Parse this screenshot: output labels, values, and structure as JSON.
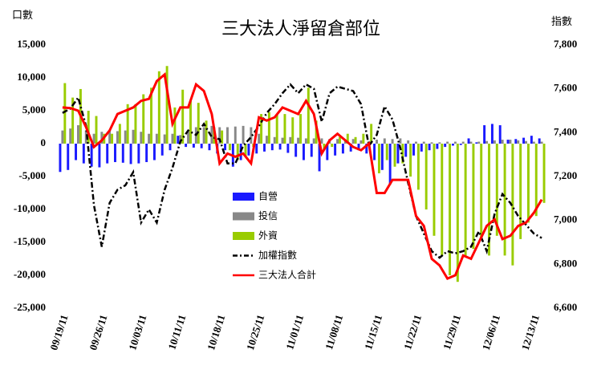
{
  "chart_data": {
    "type": "bar",
    "title": "三大法人淨留倉部位",
    "ylabel": "口數",
    "y2label": "指數",
    "categories": [
      "09/19/11",
      null,
      null,
      null,
      null,
      "09/26/11",
      null,
      null,
      null,
      null,
      "10/03/11",
      null,
      null,
      null,
      null,
      "10/11/11",
      null,
      null,
      null,
      null,
      "10/18/11",
      null,
      null,
      null,
      null,
      "10/25/11",
      null,
      null,
      null,
      null,
      "11/01/11",
      null,
      null,
      null,
      null,
      "11/08/11",
      null,
      null,
      null,
      null,
      "11/15/11",
      null,
      null,
      null,
      null,
      "11/22/11",
      null,
      null,
      null,
      null,
      "11/29/11",
      null,
      null,
      null,
      null,
      "12/06/11",
      null,
      null,
      null,
      null,
      "12/13/11",
      null
    ],
    "ylim": [
      -25000,
      15000
    ],
    "yticks": [
      {
        "value": -25000,
        "label": "-25,000"
      },
      {
        "value": -20000,
        "label": "-20,000"
      },
      {
        "value": -15000,
        "label": "-15,000"
      },
      {
        "value": -10000,
        "label": "-10,000"
      },
      {
        "value": -5000,
        "label": "-5,000"
      },
      0,
      {
        "value": 5000,
        "label": "5,000"
      },
      {
        "value": 10000,
        "label": "10,000"
      },
      {
        "value": 15000,
        "label": "15,000"
      }
    ],
    "y2lim": [
      6600,
      7800
    ],
    "y2ticks": [
      {
        "value": 6600,
        "label": "6,600"
      },
      {
        "value": 6800,
        "label": "6,800"
      },
      {
        "value": 7000,
        "label": "7,000"
      },
      {
        "value": 7200,
        "label": "7,200"
      },
      {
        "value": 7400,
        "label": "7,400"
      },
      {
        "value": 7600,
        "label": "7,600"
      },
      {
        "value": 7800,
        "label": "7,800"
      }
    ],
    "grid": false,
    "series": [
      {
        "name": "自營",
        "type": "bar",
        "color": "#1a1aff",
        "values": [
          -4300,
          -4000,
          -2500,
          -3000,
          -3500,
          -3600,
          -3000,
          -2800,
          -2900,
          -3100,
          -3000,
          -2800,
          -2500,
          -1800,
          -1000,
          1200,
          -500,
          -600,
          -700,
          -1000,
          -1500,
          -1000,
          -3500,
          -2500,
          -1800,
          -1500,
          -1200,
          -1000,
          -900,
          -1400,
          -2000,
          -2500,
          -2000,
          -4200,
          -2500,
          -1800,
          -1500,
          -1200,
          -1000,
          -1500,
          -2500,
          -4000,
          -6200,
          -3000,
          -2000,
          -1800,
          -1200,
          -1000,
          -800,
          -500,
          -300,
          -200,
          800,
          200,
          2800,
          3000,
          2800,
          600,
          700,
          900,
          1200,
          800
        ]
      },
      {
        "name": "投信",
        "type": "bar",
        "color": "#888888",
        "values": [
          2000,
          2300,
          2800,
          2000,
          1500,
          1800,
          2000,
          1900,
          2000,
          2100,
          1800,
          1500,
          1500,
          1400,
          1500,
          1300,
          1800,
          2500,
          2500,
          2700,
          2500,
          2500,
          2600,
          2700,
          2500,
          1500,
          1200,
          1000,
          900,
          1000,
          900,
          800,
          800,
          800,
          700,
          700,
          600,
          700,
          500,
          400,
          600,
          800,
          700,
          800,
          500,
          300,
          300,
          200,
          200,
          300,
          300,
          300,
          300,
          300,
          400,
          500,
          600,
          600,
          500,
          400,
          300,
          300
        ]
      },
      {
        "name": "外資",
        "type": "bar",
        "color": "#99cc00",
        "values": [
          9200,
          7000,
          8300,
          5000,
          4200,
          1500,
          1500,
          3000,
          6000,
          6000,
          7500,
          8500,
          11000,
          11800,
          5500,
          8200,
          6500,
          6200,
          3500,
          2500,
          2000,
          -1000,
          -2500,
          -2000,
          -500,
          4500,
          4800,
          4500,
          4500,
          4000,
          4500,
          8500,
          3500,
          -1000,
          -500,
          1000,
          1500,
          1000,
          1500,
          3000,
          -4500,
          -2500,
          -3500,
          -3000,
          -5000,
          -7000,
          -10000,
          -14000,
          -17000,
          -20000,
          -21000,
          -17000,
          -16000,
          -14500,
          -17000,
          -14000,
          -17000,
          -18500,
          -14500,
          -12000,
          -11000,
          -9000
        ]
      },
      {
        "name": "加權指數",
        "type": "line",
        "axis": "y2",
        "color": "#000000",
        "values": [
          7490,
          7510,
          7560,
          7430,
          7070,
          6880,
          7080,
          7140,
          7160,
          7220,
          6990,
          7050,
          6990,
          7140,
          7240,
          7360,
          7410,
          7390,
          7440,
          7380,
          7370,
          7260,
          7260,
          7340,
          7380,
          7430,
          7490,
          7530,
          7580,
          7620,
          7580,
          7620,
          7600,
          7450,
          7580,
          7610,
          7600,
          7590,
          7530,
          7340,
          7390,
          7520,
          7460,
          7330,
          7170,
          7020,
          6940,
          6860,
          6830,
          6860,
          6850,
          6860,
          6880,
          6950,
          6860,
          7030,
          7120,
          7080,
          7020,
          6980,
          6940,
          6920
        ]
      },
      {
        "name": "三大法人合計",
        "type": "line",
        "color": "#ff0000",
        "values": [
          5500,
          5400,
          5000,
          2500,
          -500,
          500,
          2000,
          4500,
          5000,
          5500,
          6500,
          6800,
          9500,
          10500,
          3000,
          5500,
          5500,
          9000,
          8000,
          4500,
          -3000,
          -1500,
          -2000,
          -1500,
          -3000,
          4000,
          3500,
          4000,
          5500,
          5000,
          4500,
          6500,
          4500,
          -1500,
          500,
          1500,
          500,
          -500,
          -1000,
          0,
          -7500,
          -7500,
          -5500,
          -5500,
          -5500,
          -11000,
          -12500,
          -17500,
          -18500,
          -20500,
          -20000,
          -17000,
          -17500,
          -15000,
          -12500,
          -11500,
          -14500,
          -14000,
          -12500,
          -12000,
          -10500,
          -8500
        ]
      }
    ]
  }
}
